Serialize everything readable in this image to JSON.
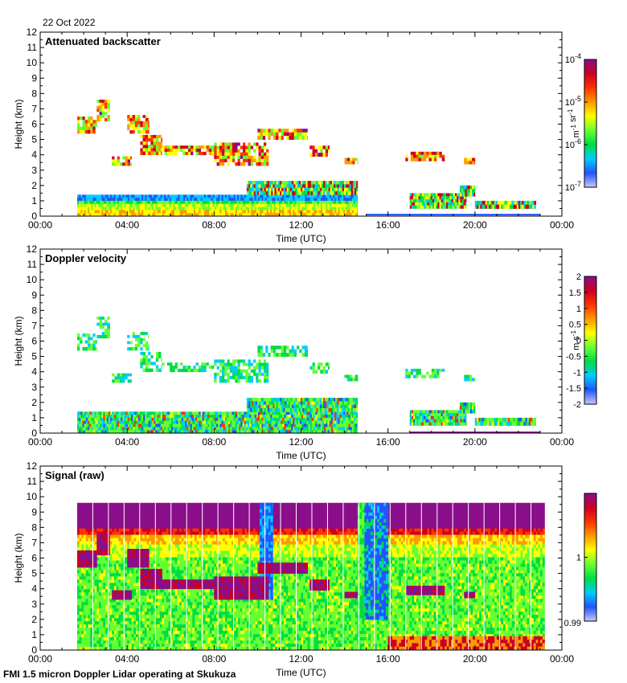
{
  "header": {
    "date": "22 Oct 2022"
  },
  "footer": {
    "caption": "FMI 1.5 micron Doppler Lidar operating at Skukuza"
  },
  "chart_data": [
    {
      "type": "heatmap",
      "title": "Attenuated backscatter",
      "xlabel": "Time (UTC)",
      "ylabel": "Height (km)",
      "x_ticks": [
        "00:00",
        "04:00",
        "08:00",
        "12:00",
        "16:00",
        "20:00",
        "00:00"
      ],
      "xlim_hours": [
        0,
        24
      ],
      "ylim_km": [
        0,
        12
      ],
      "y_ticks": [
        0,
        1,
        2,
        3,
        4,
        5,
        6,
        7,
        8,
        9,
        10,
        11,
        12
      ],
      "colorbar": {
        "scale": "log",
        "range": [
          1e-07,
          0.0001
        ],
        "ticks": [
          {
            "value": 1e-07,
            "base": "10",
            "exp": "-7"
          },
          {
            "value": 1e-06,
            "base": "10",
            "exp": "-6"
          },
          {
            "value": 1e-05,
            "base": "10",
            "exp": "-5"
          },
          {
            "value": 0.0001,
            "base": "10",
            "exp": "-4"
          }
        ],
        "unit_parts": [
          {
            "t": "m",
            "sup": "-1"
          },
          {
            "t": " sr",
            "sup": "-1"
          }
        ]
      },
      "aerosol_layer_top_km": 1.4,
      "cloud_layers": [
        {
          "t0": 1.7,
          "t1": 2.6,
          "h0": 5.4,
          "h1": 6.5
        },
        {
          "t0": 2.6,
          "t1": 3.2,
          "h0": 6.2,
          "h1": 7.6
        },
        {
          "t0": 3.3,
          "t1": 4.2,
          "h0": 3.3,
          "h1": 3.9
        },
        {
          "t0": 4.0,
          "t1": 5.0,
          "h0": 5.4,
          "h1": 6.6
        },
        {
          "t0": 4.6,
          "t1": 5.6,
          "h0": 4.0,
          "h1": 5.3
        },
        {
          "t0": 5.6,
          "t1": 8.0,
          "h0": 4.0,
          "h1": 4.6
        },
        {
          "t0": 8.0,
          "t1": 10.5,
          "h0": 3.3,
          "h1": 4.8
        },
        {
          "t0": 10.0,
          "t1": 12.3,
          "h0": 5.0,
          "h1": 5.7
        },
        {
          "t0": 12.4,
          "t1": 13.3,
          "h0": 3.9,
          "h1": 4.6
        },
        {
          "t0": 14.0,
          "t1": 14.6,
          "h0": 3.4,
          "h1": 3.8
        },
        {
          "t0": 16.8,
          "t1": 18.6,
          "h0": 3.6,
          "h1": 4.2
        },
        {
          "t0": 19.5,
          "t1": 20.0,
          "h0": 3.4,
          "h1": 3.8
        }
      ],
      "boundary_layer": [
        {
          "t0": 1.7,
          "t1": 14.6,
          "h0": 0.0,
          "h1": 1.4
        },
        {
          "t0": 9.5,
          "t1": 14.6,
          "h0": 1.4,
          "h1": 2.3
        },
        {
          "t0": 17.0,
          "t1": 19.6,
          "h0": 0.5,
          "h1": 1.5
        },
        {
          "t0": 19.3,
          "t1": 20.0,
          "h0": 1.3,
          "h1": 2.0
        },
        {
          "t0": 20.0,
          "t1": 22.8,
          "h0": 0.5,
          "h1": 1.0
        }
      ]
    },
    {
      "type": "heatmap",
      "title": "Doppler velocity",
      "xlabel": "Time (UTC)",
      "ylabel": "Height (km)",
      "x_ticks": [
        "00:00",
        "04:00",
        "08:00",
        "12:00",
        "16:00",
        "20:00",
        "00:00"
      ],
      "xlim_hours": [
        0,
        24
      ],
      "ylim_km": [
        0,
        12
      ],
      "y_ticks": [
        0,
        1,
        2,
        3,
        4,
        5,
        6,
        7,
        8,
        9,
        10,
        11,
        12
      ],
      "colorbar": {
        "scale": "linear",
        "range": [
          -2,
          2
        ],
        "ticks": [
          "2",
          "1.5",
          "1",
          "0.5",
          "0",
          "-0.5",
          "-1",
          "-1.5",
          "-2"
        ],
        "unit_parts": [
          {
            "t": "m s",
            "sup": "-1"
          }
        ]
      }
    },
    {
      "type": "heatmap",
      "title": "Signal (raw)",
      "xlabel": "Time (UTC)",
      "ylabel": "Height (km)",
      "x_ticks": [
        "00:00",
        "04:00",
        "08:00",
        "12:00",
        "16:00",
        "20:00",
        "00:00"
      ],
      "xlim_hours": [
        0,
        24
      ],
      "ylim_km": [
        0,
        12
      ],
      "y_ticks": [
        0,
        1,
        2,
        3,
        4,
        5,
        6,
        7,
        8,
        9,
        10,
        11,
        12
      ],
      "data_extent": {
        "t0": 1.7,
        "t1": 23.2,
        "h0": 0,
        "h1": 9.6
      },
      "colorbar": {
        "scale": "linear",
        "range": [
          0.99,
          1.01
        ],
        "ticks": [
          "1",
          "0.99"
        ],
        "unit_parts": []
      }
    }
  ],
  "colors": {
    "rainbow": [
      "#8a0e8a",
      "#cc0022",
      "#ff3300",
      "#ff9900",
      "#ffff00",
      "#66ff33",
      "#00dd44",
      "#00ccff",
      "#2255ff",
      "#c8c8ff"
    ]
  }
}
